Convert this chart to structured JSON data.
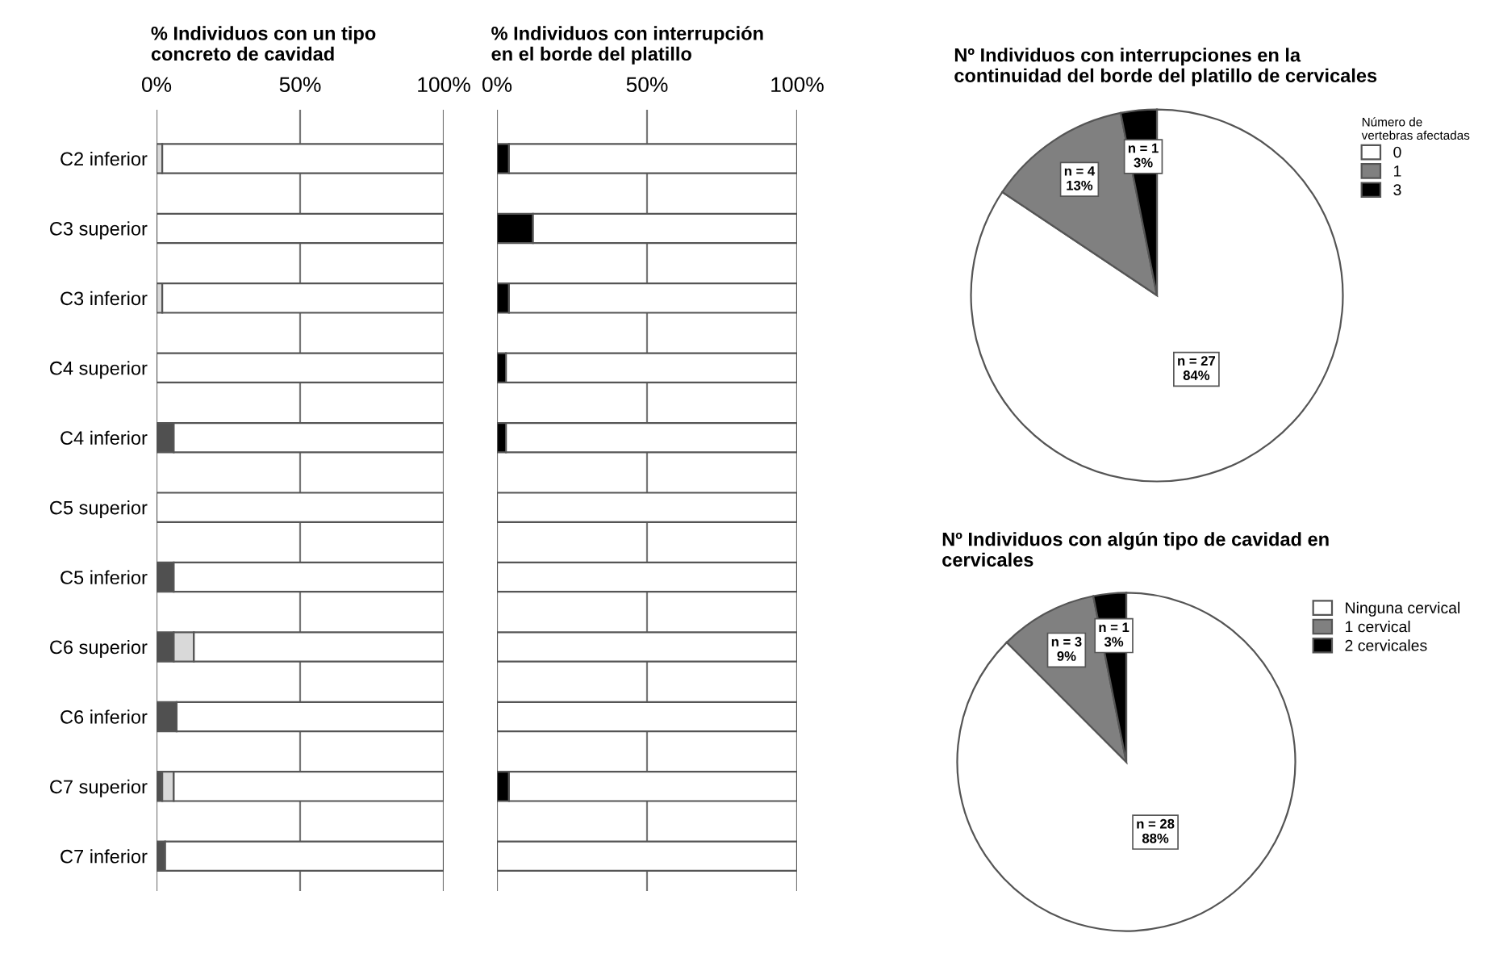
{
  "chart_data": [
    {
      "type": "bar",
      "orientation": "horizontal",
      "stacked": true,
      "title": "% Individuos con un tipo\nconcreto de cavidad",
      "categories": [
        "C2 inferior",
        "C3 superior",
        "C3 inferior",
        "C4 superior",
        "C4 inferior",
        "C5 superior",
        "C5 inferior",
        "C6 superior",
        "C6 inferior",
        "C7 superior",
        "C7 inferior"
      ],
      "series": [
        {
          "color": "#505050",
          "values": [
            0,
            0,
            0,
            0,
            6,
            0,
            6,
            6,
            7,
            2,
            3
          ]
        },
        {
          "color": "#d9d9d9",
          "values": [
            2,
            0,
            2,
            0,
            0,
            0,
            0,
            7,
            0,
            4,
            0
          ]
        },
        {
          "color": "#ffffff",
          "values": [
            98,
            100,
            98,
            100,
            94,
            100,
            94,
            87,
            93,
            94,
            97
          ]
        }
      ],
      "xlim": [
        0,
        100
      ],
      "xticks": [
        {
          "value": 0,
          "label": "0%"
        },
        {
          "value": 50,
          "label": "50%"
        },
        {
          "value": 100,
          "label": "100%"
        }
      ],
      "grid": "x"
    },
    {
      "type": "bar",
      "orientation": "horizontal",
      "stacked": true,
      "title": "% Individuos con interrupción\nen el borde del platillo",
      "series": [
        {
          "color": "#000000",
          "values": [
            4,
            12,
            4,
            3,
            3,
            0,
            0,
            0,
            0,
            4,
            0
          ]
        },
        {
          "color": "#ffffff",
          "values": [
            96,
            88,
            96,
            97,
            97,
            100,
            100,
            100,
            100,
            96,
            100
          ]
        }
      ],
      "xlim": [
        0,
        100
      ],
      "xticks": [
        {
          "value": 0,
          "label": "0%"
        },
        {
          "value": 50,
          "label": "50%"
        },
        {
          "value": 100,
          "label": "100%"
        }
      ],
      "grid": "x",
      "tick_labels": "x"
    },
    {
      "type": "pie",
      "title": "Nº Individuos con interrupciones en la\ncontinuidad del borde del platillo de cervicales",
      "legend_title": "Número de\nvertebras afectadas",
      "categories": [
        "0",
        "1",
        "3"
      ],
      "values": [
        27,
        4,
        1
      ],
      "colors": [
        "#ffffff",
        "#808080",
        "#000000"
      ],
      "value_labels": [
        "n = 27\n84%",
        "n = 4\n13%",
        "n = 1\n3%"
      ],
      "legend": "top right"
    },
    {
      "type": "pie",
      "title": "Nº Individuos con algún tipo de cavidad en\ncervicales",
      "categories": [
        "Ninguna cervical",
        "1 cervical",
        "2 cervicales"
      ],
      "values": [
        28,
        3,
        1
      ],
      "colors": [
        "#ffffff",
        "#808080",
        "#000000"
      ],
      "value_labels": [
        "n = 28\n88%",
        "n = 3\n9%",
        "n = 1\n3%"
      ],
      "legend": "top right"
    }
  ]
}
